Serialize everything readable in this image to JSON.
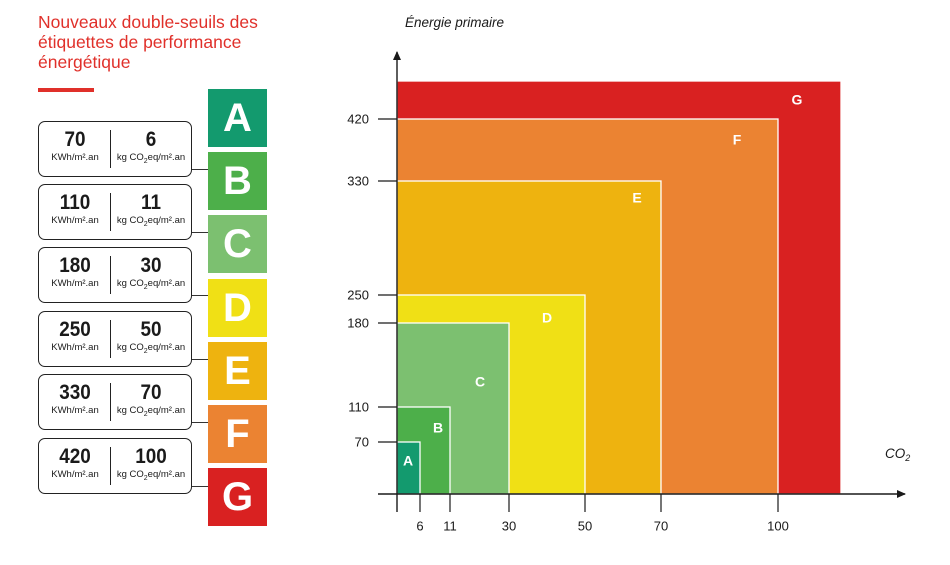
{
  "title": "Nouveaux double-seuils des étiquettes de performance énergétique",
  "units": {
    "energy": "KWh/m².an",
    "co2_prefix": "kg CO",
    "co2_sub": "2",
    "co2_suffix": "eq/m².an"
  },
  "thresholds": [
    {
      "energy": "70",
      "co2": "6"
    },
    {
      "energy": "110",
      "co2": "11"
    },
    {
      "energy": "180",
      "co2": "30"
    },
    {
      "energy": "250",
      "co2": "50"
    },
    {
      "energy": "330",
      "co2": "70"
    },
    {
      "energy": "420",
      "co2": "100"
    }
  ],
  "classes": [
    {
      "letter": "A",
      "color": "#139A6E"
    },
    {
      "letter": "B",
      "color": "#4DAF4A"
    },
    {
      "letter": "C",
      "color": "#7CC070"
    },
    {
      "letter": "D",
      "color": "#F0E015"
    },
    {
      "letter": "E",
      "color": "#EEB30F"
    },
    {
      "letter": "F",
      "color": "#EB8332"
    },
    {
      "letter": "G",
      "color": "#D92121"
    }
  ],
  "chart_data": {
    "type": "area",
    "ylabel": "Énergie primaire",
    "xlabel_main": "CO",
    "xlabel_sub": "2",
    "x_ticks": [
      6,
      11,
      30,
      50,
      70,
      100
    ],
    "y_ticks": [
      70,
      110,
      180,
      250,
      330,
      420
    ],
    "regions": [
      {
        "letter": "G",
        "co2_max": null,
        "energy_max": null,
        "color": "#D92121"
      },
      {
        "letter": "F",
        "co2_max": 100,
        "energy_max": 420,
        "color": "#EB8332"
      },
      {
        "letter": "E",
        "co2_max": 70,
        "energy_max": 330,
        "color": "#EEB30F"
      },
      {
        "letter": "D",
        "co2_max": 50,
        "energy_max": 250,
        "color": "#F0E015"
      },
      {
        "letter": "C",
        "co2_max": 30,
        "energy_max": 180,
        "color": "#7CC070"
      },
      {
        "letter": "B",
        "co2_max": 11,
        "energy_max": 110,
        "color": "#4DAF4A"
      },
      {
        "letter": "A",
        "co2_max": 6,
        "energy_max": 70,
        "color": "#139A6E"
      }
    ]
  }
}
